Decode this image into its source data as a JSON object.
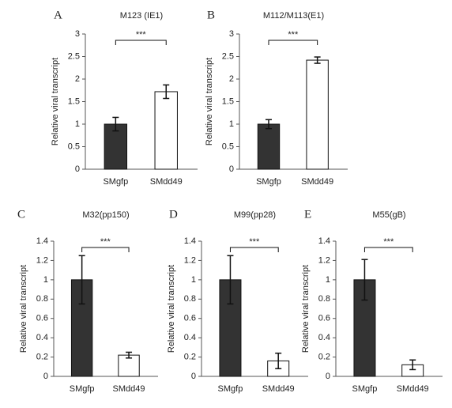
{
  "chart_data": [
    {
      "type": "bar",
      "panel_label": "A",
      "title": "M123 (IE1)",
      "y_label": "Relative  viral transcript",
      "categories": [
        "SMgfp",
        "SMdd49"
      ],
      "values": [
        1.0,
        1.72
      ],
      "errors": [
        0.15,
        0.15
      ],
      "colors": [
        "#333333",
        "#ffffff"
      ],
      "significance": "***",
      "ylim": [
        0,
        3
      ],
      "yticks": [
        0,
        0.5,
        1,
        1.5,
        2,
        2.5,
        3
      ]
    },
    {
      "type": "bar",
      "panel_label": "B",
      "title": "M112/M113(E1)",
      "y_label": "Relative  viral transcript",
      "categories": [
        "SMgfp",
        "SMdd49"
      ],
      "values": [
        1.0,
        2.42
      ],
      "errors": [
        0.1,
        0.07
      ],
      "colors": [
        "#333333",
        "#ffffff"
      ],
      "significance": "***",
      "ylim": [
        0,
        3
      ],
      "yticks": [
        0,
        0.5,
        1,
        1.5,
        2,
        2.5,
        3
      ]
    },
    {
      "type": "bar",
      "panel_label": "C",
      "title": "M32(pp150)",
      "y_label": "Relative  viral transcript",
      "categories": [
        "SMgfp",
        "SMdd49"
      ],
      "values": [
        1.0,
        0.22
      ],
      "errors": [
        0.25,
        0.03
      ],
      "colors": [
        "#333333",
        "#ffffff"
      ],
      "significance": "***",
      "ylim": [
        0,
        1.4
      ],
      "yticks": [
        0,
        0.2,
        0.4,
        0.6,
        0.8,
        1,
        1.2,
        1.4
      ]
    },
    {
      "type": "bar",
      "panel_label": "D",
      "title": "M99(pp28)",
      "y_label": "Relative  viral transcript",
      "categories": [
        "SMgfp",
        "SMdd49"
      ],
      "values": [
        1.0,
        0.16
      ],
      "errors": [
        0.25,
        0.08
      ],
      "colors": [
        "#333333",
        "#ffffff"
      ],
      "significance": "***",
      "ylim": [
        0,
        1.4
      ],
      "yticks": [
        0,
        0.2,
        0.4,
        0.6,
        0.8,
        1,
        1.2,
        1.4
      ]
    },
    {
      "type": "bar",
      "panel_label": "E",
      "title": "M55(gB)",
      "y_label": "Relative  viral transcript",
      "categories": [
        "SMgfp",
        "SMdd49"
      ],
      "values": [
        1.0,
        0.12
      ],
      "errors": [
        0.21,
        0.05
      ],
      "colors": [
        "#333333",
        "#ffffff"
      ],
      "significance": "***",
      "ylim": [
        0,
        1.4
      ],
      "yticks": [
        0,
        0.2,
        0.4,
        0.6,
        0.8,
        1,
        1.2,
        1.4
      ]
    }
  ]
}
